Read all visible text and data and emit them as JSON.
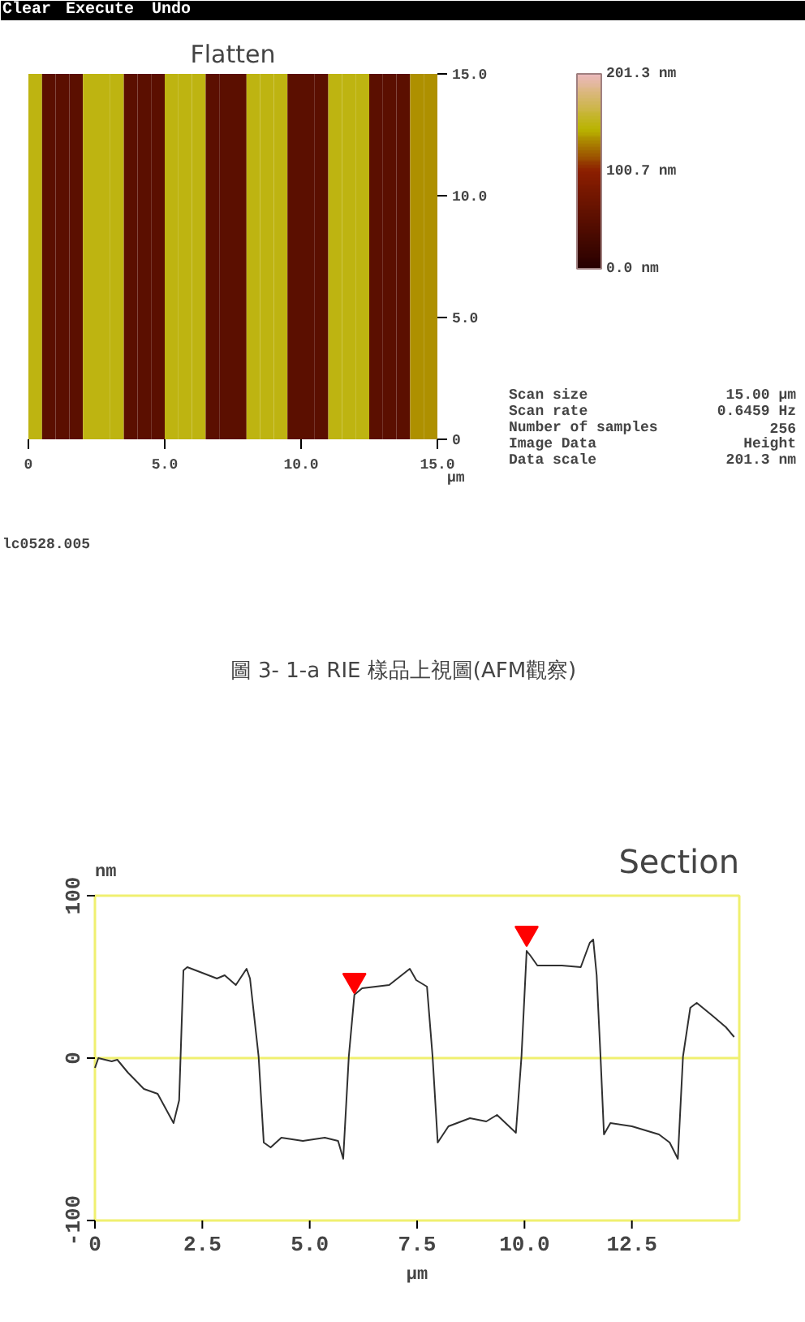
{
  "chart_data": [
    {
      "type": "heatmap",
      "title": "Flatten",
      "xlabel": "µm",
      "categories": [
        null,
        null,
        null,
        null,
        null,
        null,
        null,
        null,
        null,
        null,
        null,
        null,
        null,
        null,
        null,
        null,
        null,
        null,
        null,
        null,
        null,
        null,
        null,
        null,
        null,
        null,
        null,
        null,
        null,
        null
      ],
      "y_categories": [
        null
      ],
      "cells": [
        [
          150,
          50,
          50,
          50,
          150,
          150,
          150,
          50,
          50,
          50,
          150,
          150,
          150,
          50,
          50,
          50,
          150,
          150,
          150,
          50,
          50,
          50,
          150,
          150,
          150,
          50,
          50,
          50,
          135,
          135
        ]
      ],
      "clim": [
        0,
        201.3
      ],
      "cticks": [
        {
          "value": 0,
          "label": "0.0 nm"
        },
        {
          "value": 100.7,
          "label": "100.7 nm"
        },
        {
          "value": 201.3,
          "label": "201.3 nm"
        }
      ],
      "annotations": [
        "Clear",
        "Execute",
        "Undo",
        "Scan size",
        "15.00 µm",
        "Scan rate",
        "0.6459 Hz",
        "Number of samples",
        "256",
        "Image Data",
        "Height",
        "Data scale",
        "201.3 nm",
        "0",
        "5.0",
        "10.0",
        "15.0",
        "0",
        "5.0",
        "10.0",
        "15.0"
      ]
    },
    {
      "type": "line",
      "title": "Section",
      "xlabel": "µm",
      "ylabel": "nm",
      "xlim": [
        0,
        15
      ],
      "ylim": [
        -100,
        100
      ],
      "xticks": [
        0,
        2.5,
        {
          "value": 5,
          "label": "5.0"
        },
        7.5,
        {
          "value": 10,
          "label": "10.0"
        },
        12.5
      ],
      "yticks": [
        -100,
        0,
        100
      ],
      "grid": false,
      "ref_lines": [
        {
          "axis": "y",
          "value": 0,
          "color": "#f0f070"
        }
      ],
      "annotations": [
        "lc0528.005",
        "圖 3- 1-a RIE 樣品上視圖(AFM觀察)"
      ],
      "series": [
        {
          "color": "#303030",
          "x": [
            0,
            0.08,
            0.39,
            0.52,
            0.77,
            1.14,
            1.46,
            1.83,
            1.96,
            2.06,
            2.15,
            2.84,
            3.02,
            3.28,
            3.53,
            3.61,
            3.81,
            3.93,
            4.09,
            4.34,
            4.84,
            5.35,
            5.66,
            5.78,
            5.91,
            6.04,
            6.22,
            6.85,
            7.33,
            7.48,
            7.73,
            7.86,
            7.98,
            8.23,
            8.73,
            9.11,
            9.36,
            9.8,
            9.93,
            10.05,
            10.14,
            10.3,
            10.87,
            11.31,
            11.52,
            11.6,
            11.68,
            11.77,
            11.85,
            12.0,
            12.5,
            13.13,
            13.38,
            13.57,
            13.69,
            13.86,
            14.01,
            14.38,
            14.69,
            14.88
          ],
          "values": [
            -6,
            0,
            -2,
            -1,
            -9,
            -19,
            -22,
            -40,
            -26,
            54,
            56,
            49,
            51,
            45,
            55,
            49,
            1,
            -52,
            -55,
            -49,
            -51,
            -49,
            -51,
            -62,
            1,
            39,
            43,
            45,
            55,
            48,
            44,
            1,
            -52,
            -42,
            -37,
            -39,
            -35,
            -46,
            1,
            66,
            63,
            57,
            57,
            56,
            71,
            73,
            51,
            1,
            -47,
            -40,
            -42,
            -47,
            -52,
            -62,
            1,
            31,
            34,
            26,
            19,
            13
          ]
        },
        {
          "type": "scatter",
          "marker": "triangle",
          "color": "#ff0000",
          "x": [
            6.04,
            10.05
          ],
          "values": [
            48,
            77
          ]
        }
      ]
    }
  ]
}
